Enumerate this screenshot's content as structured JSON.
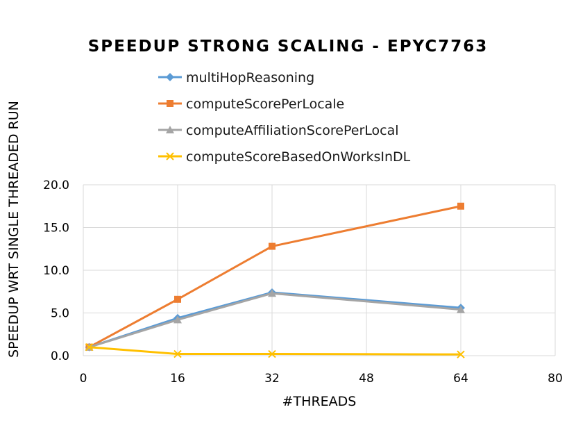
{
  "chart_data": {
    "type": "line",
    "title": "SPEEDUP STRONG SCALING - EPYC7763",
    "xlabel": "#THREADS",
    "ylabel": "SPEEDUP WRT SINGLE THREADED RUN",
    "xlim": [
      0,
      80
    ],
    "ylim": [
      0,
      20
    ],
    "xticks": [
      0,
      16,
      32,
      48,
      64,
      80
    ],
    "xtick_labels": [
      "0",
      "16",
      "32",
      "48",
      "64",
      "80"
    ],
    "yticks": [
      0,
      5,
      10,
      15,
      20
    ],
    "ytick_labels": [
      "0.0",
      "5.0",
      "10.0",
      "15.0",
      "20.0"
    ],
    "grid": true,
    "legend_position": "top",
    "x": [
      1,
      16,
      32,
      64
    ],
    "series": [
      {
        "name": "multiHopReasoning",
        "values": [
          1.0,
          4.4,
          7.4,
          5.6
        ],
        "color": "#5b9bd5",
        "marker": "diamond"
      },
      {
        "name": "computeScorePerLocale",
        "values": [
          1.0,
          6.6,
          12.8,
          17.5
        ],
        "color": "#ed7d31",
        "marker": "square"
      },
      {
        "name": "computeAffiliationScorePerLocal",
        "values": [
          1.0,
          4.2,
          7.3,
          5.4
        ],
        "color": "#a5a5a5",
        "marker": "triangle"
      },
      {
        "name": "computeScoreBasedOnWorksInDL",
        "values": [
          1.0,
          0.2,
          0.2,
          0.15
        ],
        "color": "#ffc000",
        "marker": "x"
      }
    ]
  }
}
